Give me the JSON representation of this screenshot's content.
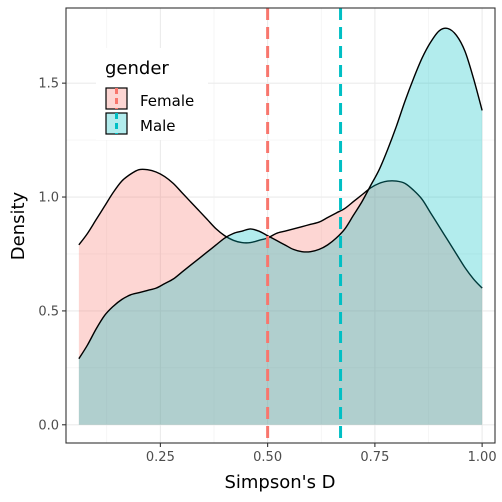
{
  "chart_data": {
    "type": "area",
    "xlabel": "Simpson's D",
    "ylabel": "Density",
    "xlim": [
      0.03,
      1.03
    ],
    "ylim": [
      -0.08,
      1.83
    ],
    "x_ticks": [
      0.25,
      0.5,
      0.75,
      1.0
    ],
    "x_tick_labels": [
      "0.25",
      "0.50",
      "0.75",
      "1.00"
    ],
    "y_ticks": [
      0.0,
      0.5,
      1.0,
      1.5
    ],
    "y_tick_labels": [
      "0.0",
      "0.5",
      "1.0",
      "1.5"
    ],
    "grid": true,
    "legend": {
      "title": "gender",
      "placement": "top-left",
      "entries": [
        "Female",
        "Male"
      ]
    },
    "series": [
      {
        "name": "Female",
        "fill": "#F8766D",
        "fill_opacity": 0.3,
        "mean": 0.5,
        "x": [
          0.06,
          0.08,
          0.1,
          0.12,
          0.14,
          0.16,
          0.18,
          0.2,
          0.22,
          0.24,
          0.26,
          0.28,
          0.3,
          0.32,
          0.34,
          0.36,
          0.38,
          0.4,
          0.42,
          0.44,
          0.46,
          0.48,
          0.5,
          0.52,
          0.54,
          0.56,
          0.58,
          0.6,
          0.62,
          0.64,
          0.66,
          0.68,
          0.7,
          0.72,
          0.74,
          0.76,
          0.78,
          0.8,
          0.82,
          0.84,
          0.86,
          0.88,
          0.9,
          0.92,
          0.94,
          0.96,
          0.98,
          1.0
        ],
        "y": [
          0.79,
          0.84,
          0.9,
          0.96,
          1.02,
          1.07,
          1.1,
          1.12,
          1.12,
          1.11,
          1.09,
          1.06,
          1.02,
          0.98,
          0.94,
          0.9,
          0.86,
          0.83,
          0.81,
          0.8,
          0.8,
          0.81,
          0.82,
          0.84,
          0.85,
          0.86,
          0.87,
          0.88,
          0.89,
          0.91,
          0.93,
          0.95,
          0.98,
          1.01,
          1.04,
          1.06,
          1.07,
          1.07,
          1.06,
          1.03,
          0.99,
          0.93,
          0.87,
          0.81,
          0.75,
          0.69,
          0.64,
          0.6
        ]
      },
      {
        "name": "Male",
        "fill": "#00BFC4",
        "fill_opacity": 0.3,
        "mean": 0.67,
        "x": [
          0.06,
          0.08,
          0.1,
          0.12,
          0.14,
          0.16,
          0.18,
          0.2,
          0.22,
          0.24,
          0.26,
          0.28,
          0.3,
          0.32,
          0.34,
          0.36,
          0.38,
          0.4,
          0.42,
          0.44,
          0.46,
          0.48,
          0.5,
          0.52,
          0.54,
          0.56,
          0.58,
          0.6,
          0.62,
          0.64,
          0.66,
          0.68,
          0.7,
          0.72,
          0.74,
          0.76,
          0.78,
          0.8,
          0.82,
          0.84,
          0.86,
          0.88,
          0.9,
          0.92,
          0.94,
          0.96,
          0.98,
          1.0
        ],
        "y": [
          0.29,
          0.35,
          0.42,
          0.48,
          0.52,
          0.55,
          0.57,
          0.58,
          0.59,
          0.6,
          0.62,
          0.64,
          0.67,
          0.7,
          0.73,
          0.76,
          0.79,
          0.82,
          0.84,
          0.85,
          0.86,
          0.85,
          0.83,
          0.81,
          0.79,
          0.77,
          0.76,
          0.76,
          0.77,
          0.79,
          0.82,
          0.86,
          0.92,
          0.98,
          1.05,
          1.12,
          1.21,
          1.31,
          1.42,
          1.52,
          1.61,
          1.68,
          1.73,
          1.74,
          1.71,
          1.64,
          1.52,
          1.38
        ]
      }
    ]
  }
}
